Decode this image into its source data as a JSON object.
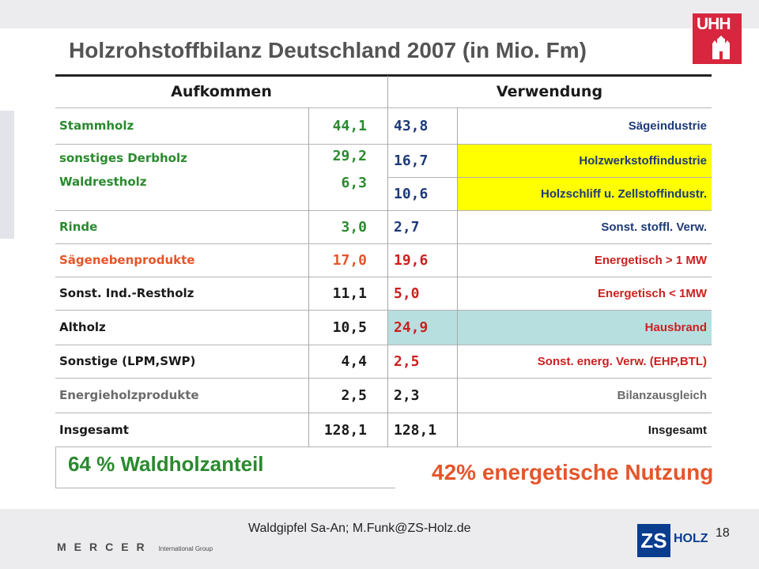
{
  "title": "Holzrohstoffbilanz Deutschland 2007 (in Mio. Fm)",
  "logo_text": "UHH",
  "table": {
    "header_left": "Aufkommen",
    "header_right": "Verwendung",
    "rows": [
      {
        "label": "Stammholz",
        "value_supply": "44,1",
        "value_use": "43,8",
        "use": "Sägeindustrie"
      },
      {
        "label": "sonstiges Derbholz",
        "value_supply": "29,2",
        "value_use": "16,7",
        "use": "Holzwerkstoffindustrie"
      },
      {
        "label": "Waldrestholz",
        "value_supply": "6,3",
        "value_use": "10,6",
        "use": "Holzschliff u. Zellstoffindustr."
      },
      {
        "label": "Rinde",
        "value_supply": "3,0",
        "value_use": "2,7",
        "use": "Sonst. stoffl. Verw."
      },
      {
        "label": "Sägenebenprodukte",
        "value_supply": "17,0",
        "value_use": "19,6",
        "use": "Energetisch > 1 MW"
      },
      {
        "label": "Sonst. Ind.-Restholz",
        "value_supply": "11,1",
        "value_use": "5,0",
        "use": "Energetisch < 1MW"
      },
      {
        "label": "Altholz",
        "value_supply": "10,5",
        "value_use": "24,9",
        "use": "Hausbrand"
      },
      {
        "label": "Sonstige (LPM,SWP)",
        "value_supply": "4,4",
        "value_use": "2,5",
        "use": "Sonst. energ. Verw. (EHP,BTL)"
      },
      {
        "label": "Energieholzprodukte",
        "value_supply": "2,5",
        "value_use": "2,3",
        "use": "Bilanzausgleich"
      },
      {
        "label": "Insgesamt",
        "value_supply": "128,1",
        "value_use": "128,1",
        "use": "Insgesamt"
      }
    ]
  },
  "summary_left": "64 % Waldholzanteil",
  "summary_right": "42% energetische Nutzung",
  "footer_text": "Waldgipfel Sa-An; M.Funk@ZS-Holz.de",
  "page_number": "18",
  "mercer_logo": "MERCER",
  "mercer_sub": "International Group",
  "zs_logo_letters": "ZS",
  "zs_logo_word": "HOLZ",
  "colors": {
    "green": "#2a8a2e",
    "navy": "#1e3a7a",
    "orange": "#e5552a",
    "red": "#cc2020",
    "gray": "#6b6b6b",
    "black": "#1a1a1a",
    "yellow": "#ffff00",
    "lightblue": "#b8dfe0"
  }
}
